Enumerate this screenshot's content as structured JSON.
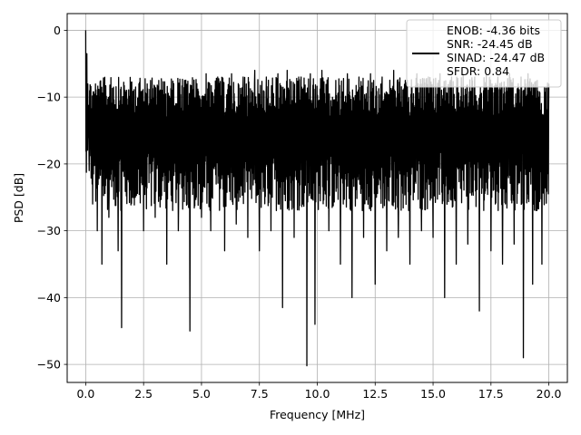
{
  "chart_data": {
    "type": "line",
    "xlabel": "Frequency [MHz]",
    "ylabel": "PSD [dB]",
    "xlim": [
      -0.8,
      20.8
    ],
    "ylim": [
      -52.7,
      2.5
    ],
    "xticks": [
      0.0,
      2.5,
      5.0,
      7.5,
      10.0,
      12.5,
      15.0,
      17.5,
      20.0
    ],
    "xtick_labels": [
      "0.0",
      "2.5",
      "5.0",
      "7.5",
      "10.0",
      "12.5",
      "15.0",
      "17.5",
      "20.0"
    ],
    "yticks": [
      0,
      -10,
      -20,
      -30,
      -40,
      -50
    ],
    "ytick_labels": [
      "0",
      "−10",
      "−20",
      "−30",
      "−40",
      "−50"
    ],
    "grid": true,
    "legend": {
      "placement": "top-right",
      "entries": [
        "ENOB: -4.36 bits",
        "SNR: -24.45 dB",
        "SINAD: -24.47 dB",
        "SFDR: 0.84"
      ]
    },
    "series": [
      {
        "color": "#000000",
        "x": [
          0.0,
          0.02,
          0.05,
          0.1,
          0.15,
          0.2,
          0.3,
          0.4,
          0.5,
          0.6,
          0.7,
          0.8,
          1.0,
          1.2,
          1.4,
          1.55,
          1.7,
          2.0,
          2.3,
          2.5,
          2.8,
          3.0,
          3.3,
          3.5,
          3.8,
          4.0,
          4.3,
          4.5,
          4.8,
          5.0,
          5.2,
          5.4,
          5.7,
          6.0,
          6.3,
          6.5,
          6.8,
          7.0,
          7.3,
          7.5,
          7.8,
          8.0,
          8.3,
          8.5,
          8.7,
          9.0,
          9.3,
          9.55,
          9.7,
          9.9,
          10.2,
          10.5,
          10.8,
          11.0,
          11.3,
          11.5,
          11.8,
          12.0,
          12.3,
          12.5,
          12.8,
          13.0,
          13.3,
          13.5,
          13.8,
          14.0,
          14.3,
          14.5,
          14.8,
          15.0,
          15.3,
          15.5,
          15.8,
          16.0,
          16.3,
          16.5,
          16.8,
          17.0,
          17.3,
          17.5,
          17.8,
          18.0,
          18.3,
          18.5,
          18.8,
          18.9,
          19.1,
          19.3,
          19.5,
          19.7,
          20.0
        ],
        "y": [
          0.0,
          -6.0,
          -3.5,
          -15.0,
          -21.0,
          -8.5,
          -26.0,
          -12.0,
          -30.0,
          -10.0,
          -35.0,
          -9.0,
          -28.0,
          -8.5,
          -33.0,
          -44.5,
          -9.0,
          -25.0,
          -8.0,
          -30.0,
          -7.5,
          -28.0,
          -9.0,
          -35.0,
          -8.0,
          -30.0,
          -7.5,
          -45.0,
          -8.0,
          -28.0,
          -6.5,
          -30.0,
          -7.0,
          -33.0,
          -6.5,
          -29.0,
          -7.0,
          -31.0,
          -6.0,
          -33.0,
          -7.0,
          -30.0,
          -6.5,
          -41.5,
          -6.0,
          -31.0,
          -7.0,
          -50.2,
          -6.5,
          -44.0,
          -6.0,
          -30.0,
          -7.5,
          -35.0,
          -6.5,
          -40.0,
          -7.0,
          -31.0,
          -6.5,
          -38.0,
          -7.0,
          -33.0,
          -6.0,
          -31.0,
          -7.5,
          -35.0,
          -6.5,
          -30.0,
          -7.0,
          -31.0,
          -6.5,
          -40.0,
          -7.0,
          -35.0,
          -6.5,
          -32.0,
          -7.0,
          -42.0,
          -6.5,
          -33.0,
          -7.0,
          -35.0,
          -6.5,
          -32.0,
          -7.0,
          -49.0,
          -6.5,
          -38.0,
          -7.5,
          -35.0,
          -8.0
        ]
      }
    ]
  }
}
